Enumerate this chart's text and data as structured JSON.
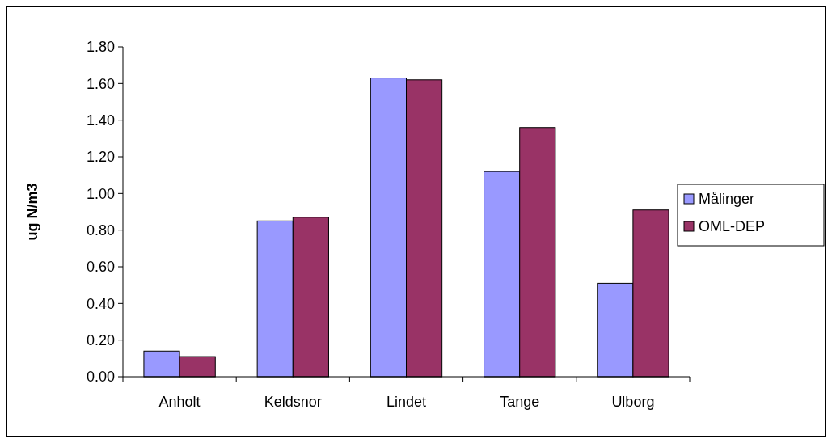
{
  "chart_data": {
    "type": "bar",
    "ylabel": "ug N/m3",
    "categories": [
      "Anholt",
      "Keldsnor",
      "Lindet",
      "Tange",
      "Ulborg"
    ],
    "series": [
      {
        "name": "Målinger",
        "color": "#9999ff",
        "values": [
          0.14,
          0.85,
          1.63,
          1.12,
          0.51
        ]
      },
      {
        "name": "OML-DEP",
        "color": "#993366",
        "values": [
          0.11,
          0.87,
          1.62,
          1.36,
          0.91
        ]
      }
    ],
    "ylim": [
      0,
      1.8
    ],
    "yticks": [
      {
        "value": 0,
        "label": "0.00"
      },
      {
        "value": 0.2,
        "label": "0.20"
      },
      {
        "value": 0.4,
        "label": "0.40"
      },
      {
        "value": 0.6,
        "label": "0.60"
      },
      {
        "value": 0.8,
        "label": "0.80"
      },
      {
        "value": 1,
        "label": "1.00"
      },
      {
        "value": 1.2,
        "label": "1.20"
      },
      {
        "value": 1.4,
        "label": "1.40"
      },
      {
        "value": 1.6,
        "label": "1.60"
      },
      {
        "value": 1.8,
        "label": "1.80"
      }
    ],
    "legend": "right"
  }
}
